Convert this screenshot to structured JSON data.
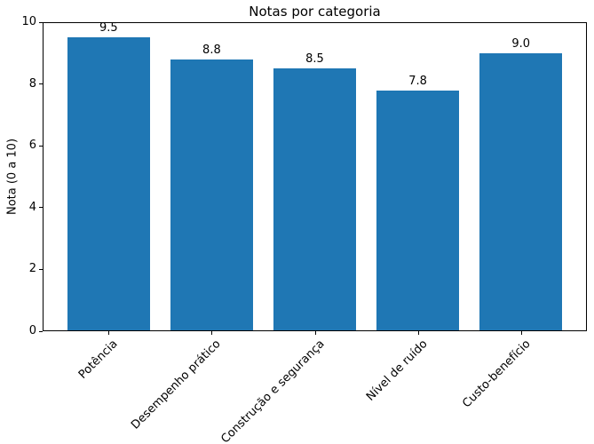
{
  "chart_data": {
    "type": "bar",
    "title": "Notas por categoria",
    "xlabel": "",
    "ylabel": "Nota (0 a 10)",
    "categories": [
      "Potência",
      "Desempenho prático",
      "Construção e segurança",
      "Nível de ruído",
      "Custo-benefício"
    ],
    "values": [
      9.5,
      8.8,
      8.5,
      7.8,
      9.0
    ],
    "value_labels": [
      "9.5",
      "8.8",
      "8.5",
      "7.8",
      "9.0"
    ],
    "ylim": [
      0,
      10
    ],
    "yticks": [
      0,
      2,
      4,
      6,
      8,
      10
    ],
    "ytick_labels": [
      "0",
      "2",
      "4",
      "6",
      "8",
      "10"
    ],
    "xtick_rotation": 45,
    "grid": false,
    "legend": null,
    "bar_color": "#1f77b4",
    "axis_color": "#000000",
    "background_color": "#ffffff"
  }
}
